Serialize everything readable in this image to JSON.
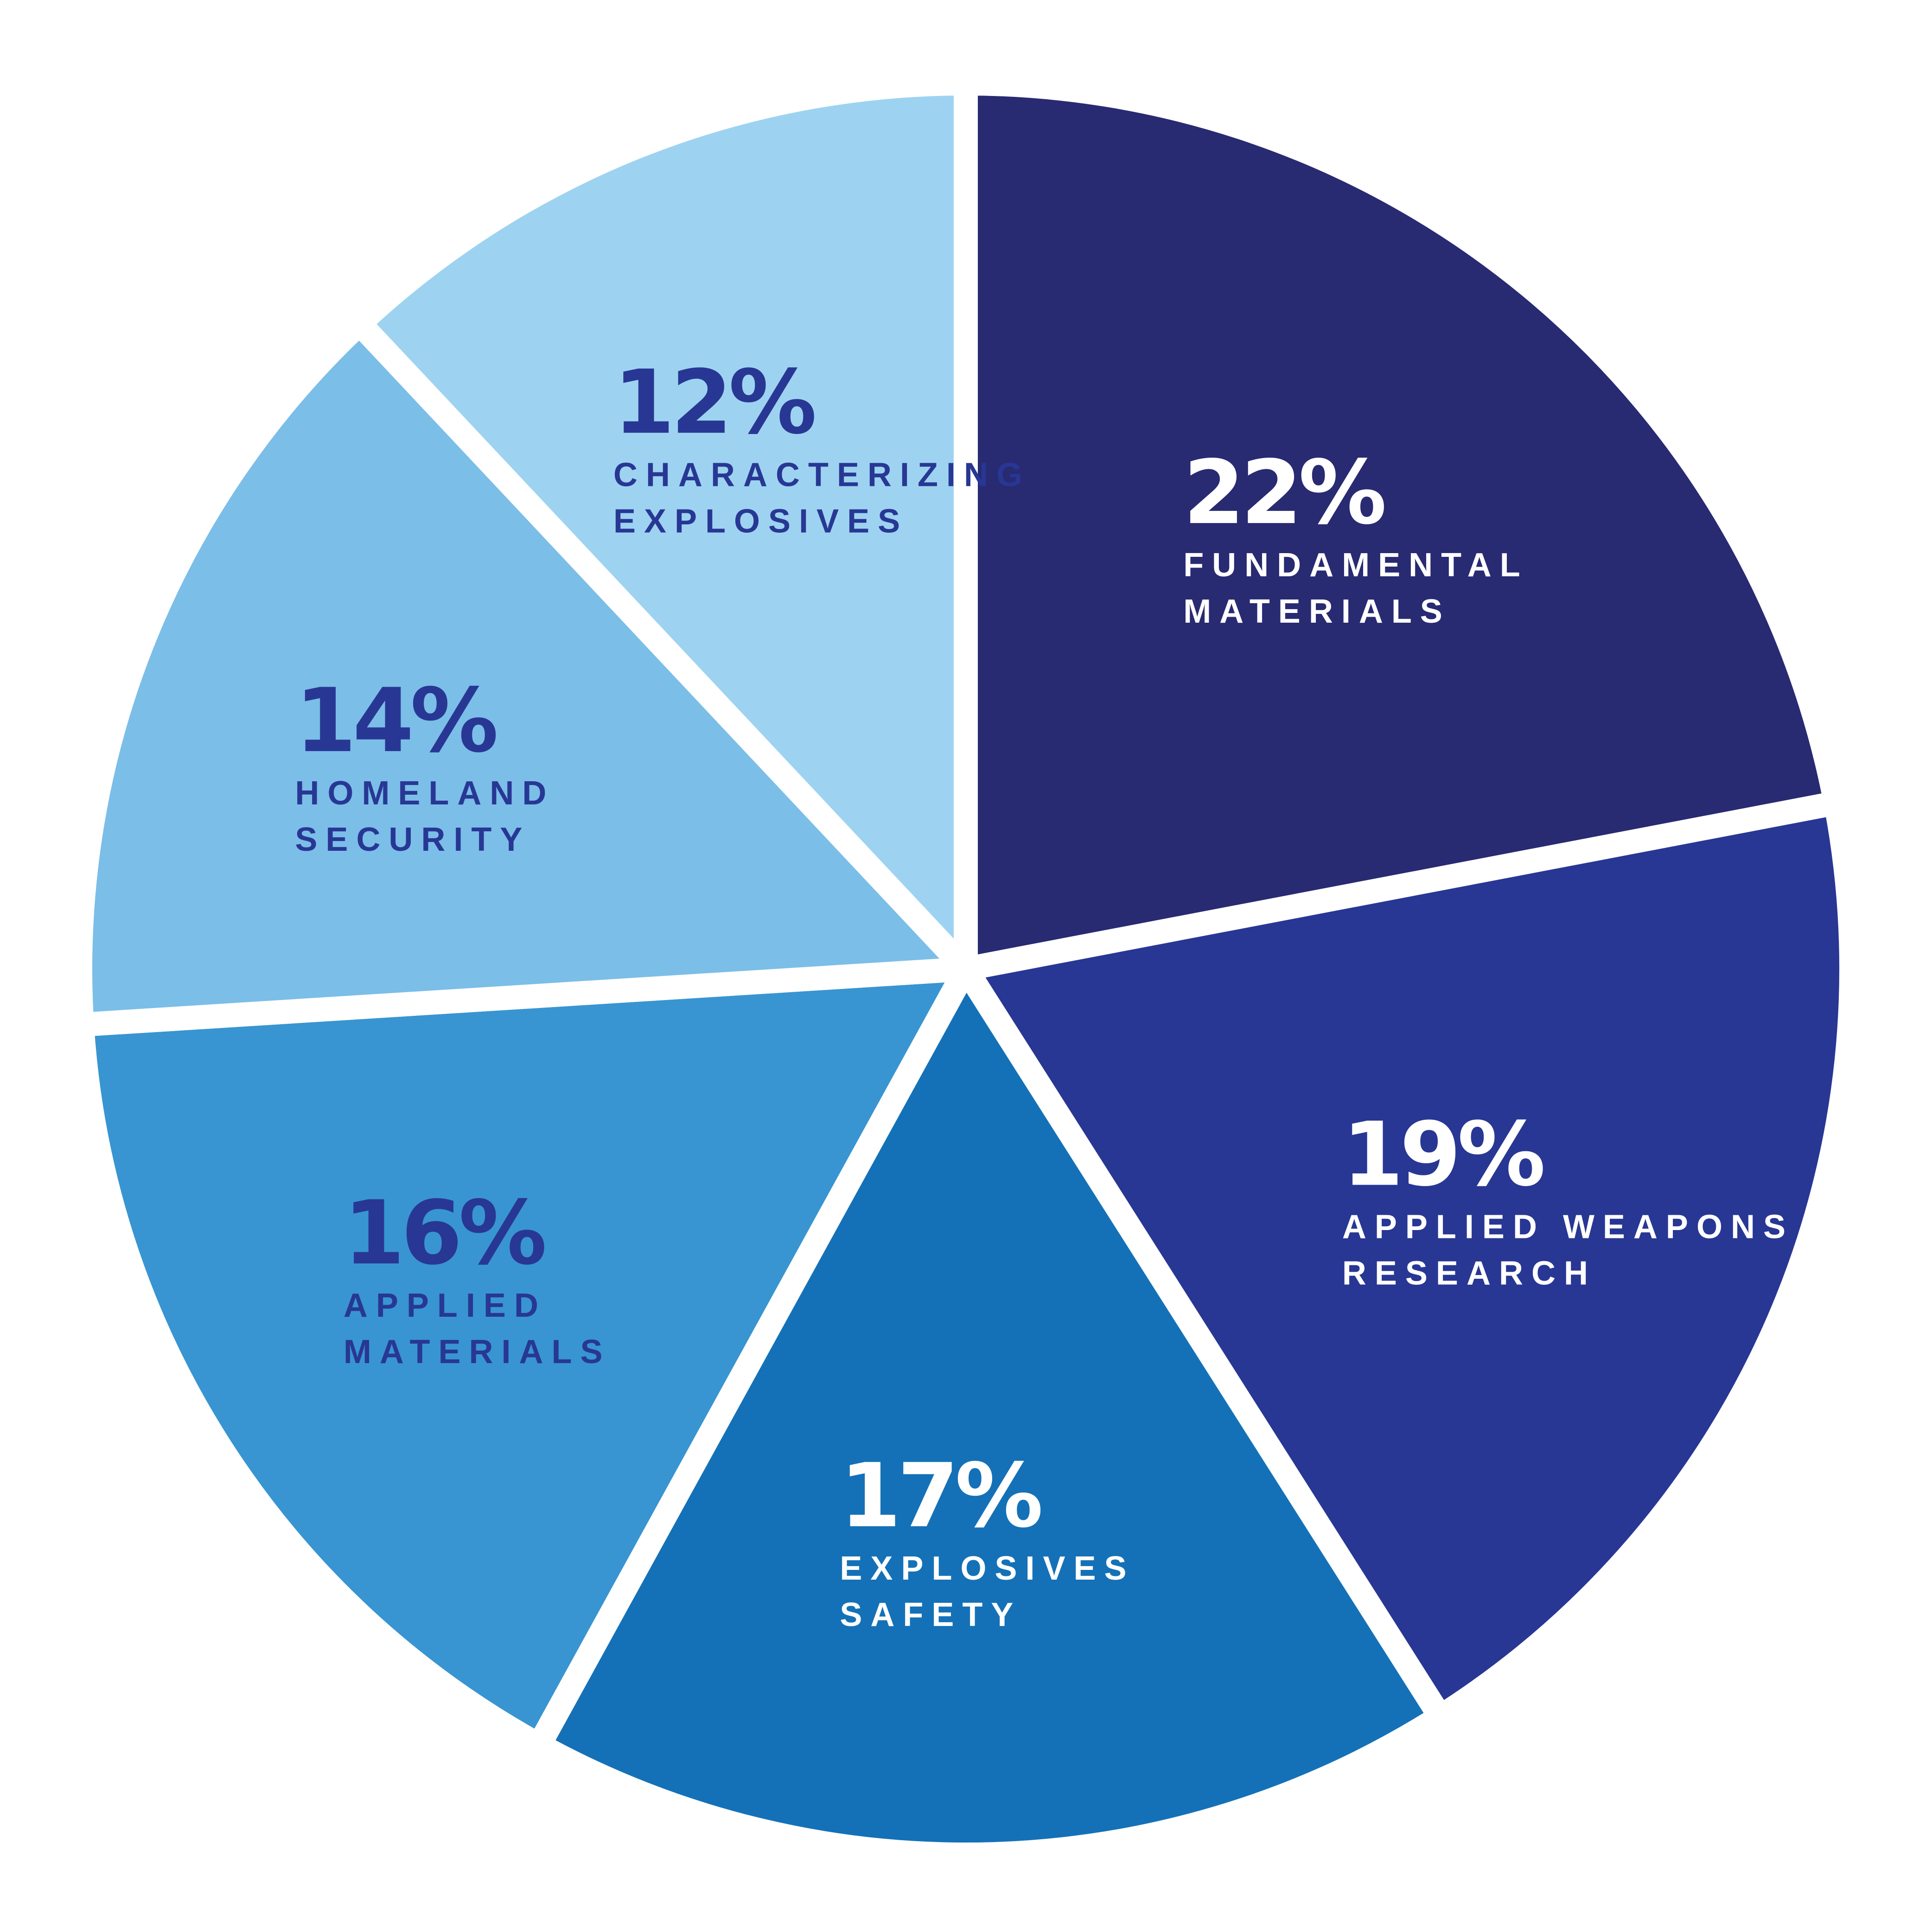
{
  "chart_data": {
    "type": "pie",
    "title": "",
    "slices": [
      {
        "value": 22,
        "value_label": "22%",
        "label_lines": [
          "FUNDAMENTAL",
          "MATERIALS"
        ],
        "color": "#282A72",
        "label_color": "#FFFFFF"
      },
      {
        "value": 19,
        "value_label": "19%",
        "label_lines": [
          "APPLIED WEAPONS",
          "RESEARCH"
        ],
        "color": "#283794",
        "label_color": "#FFFFFF"
      },
      {
        "value": 17,
        "value_label": "17%",
        "label_lines": [
          "EXPLOSIVES",
          "SAFETY"
        ],
        "color": "#1471B7",
        "label_color": "#FFFFFF"
      },
      {
        "value": 16,
        "value_label": "16%",
        "label_lines": [
          "APPLIED",
          "MATERIALS"
        ],
        "color": "#3895D1",
        "label_color": "#283794"
      },
      {
        "value": 14,
        "value_label": "14%",
        "label_lines": [
          "HOMELAND",
          "SECURITY"
        ],
        "color": "#7BBEE8",
        "label_color": "#283794"
      },
      {
        "value": 12,
        "value_label": "12%",
        "label_lines": [
          "CHARACTERIZING",
          "EXPLOSIVES"
        ],
        "color": "#9DD3F1",
        "label_color": "#283794"
      }
    ],
    "start": "12 o'clock",
    "direction": "clockwise",
    "legend": "none",
    "background": "#FFFFFF"
  }
}
